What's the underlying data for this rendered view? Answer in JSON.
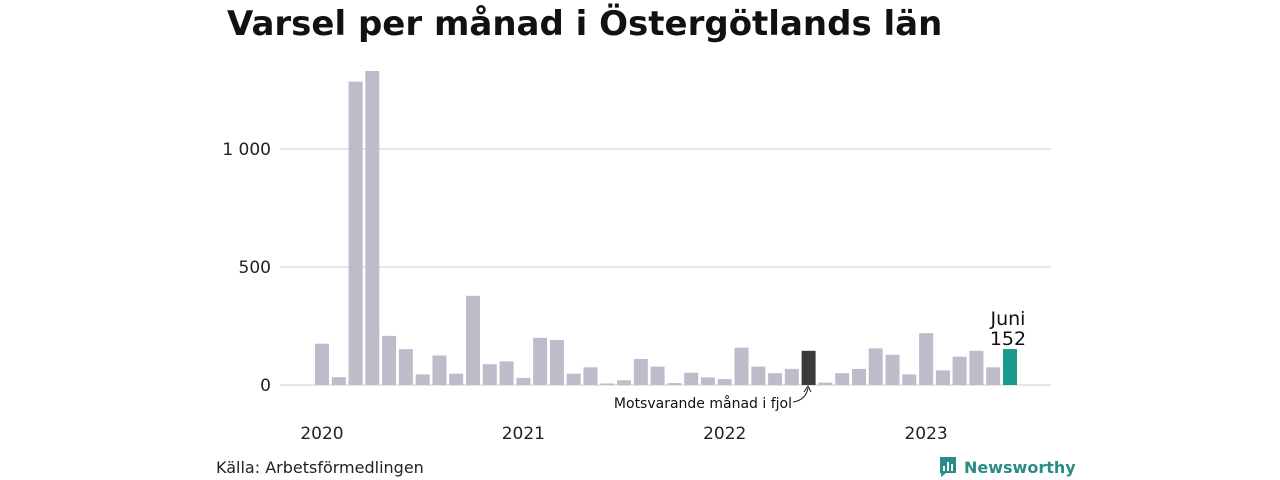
{
  "title": "Varsel per månad i Östergötlands län",
  "source": "Källa: Arbetsförmedlingen",
  "brand": {
    "name": "Newsworthy",
    "icon": "bar-chart-logo-icon"
  },
  "colors": {
    "bar": "#bebbca",
    "comparison": "#3b3b3b",
    "current": "#1a9a8c",
    "grid": "#dddddd"
  },
  "chart_data": {
    "type": "bar",
    "y_ticks": [
      {
        "value": 0,
        "label": "0"
      },
      {
        "value": 500,
        "label": "500"
      },
      {
        "value": 1000,
        "label": "1 000"
      }
    ],
    "ylim": [
      0,
      1330
    ],
    "x_year_labels": [
      {
        "label": "2020",
        "index": 0
      },
      {
        "label": "2021",
        "index": 12
      },
      {
        "label": "2022",
        "index": 24
      },
      {
        "label": "2023",
        "index": 36
      }
    ],
    "months": [
      "2020-01",
      "2020-02",
      "2020-03",
      "2020-04",
      "2020-05",
      "2020-06",
      "2020-07",
      "2020-08",
      "2020-09",
      "2020-10",
      "2020-11",
      "2020-12",
      "2021-01",
      "2021-02",
      "2021-03",
      "2021-04",
      "2021-05",
      "2021-06",
      "2021-07",
      "2021-08",
      "2021-09",
      "2021-10",
      "2021-11",
      "2021-12",
      "2022-01",
      "2022-02",
      "2022-03",
      "2022-04",
      "2022-05",
      "2022-06",
      "2022-07",
      "2022-08",
      "2022-09",
      "2022-10",
      "2022-11",
      "2022-12",
      "2023-01",
      "2023-02",
      "2023-03",
      "2023-04",
      "2023-05",
      "2023-06"
    ],
    "values": [
      175,
      33,
      1285,
      1330,
      208,
      152,
      45,
      125,
      48,
      378,
      88,
      100,
      30,
      200,
      190,
      48,
      75,
      5,
      20,
      110,
      78,
      8,
      52,
      32,
      25,
      158,
      78,
      50,
      68,
      145,
      10,
      50,
      68,
      155,
      128,
      45,
      220,
      62,
      120,
      145,
      75,
      152
    ],
    "highlight": {
      "comparison_index": 29,
      "current_index": 41
    },
    "annotations": {
      "current": {
        "label": "Juni",
        "value_label": "152"
      },
      "comparison": {
        "label": "Motsvarande månad i fjol"
      }
    }
  }
}
